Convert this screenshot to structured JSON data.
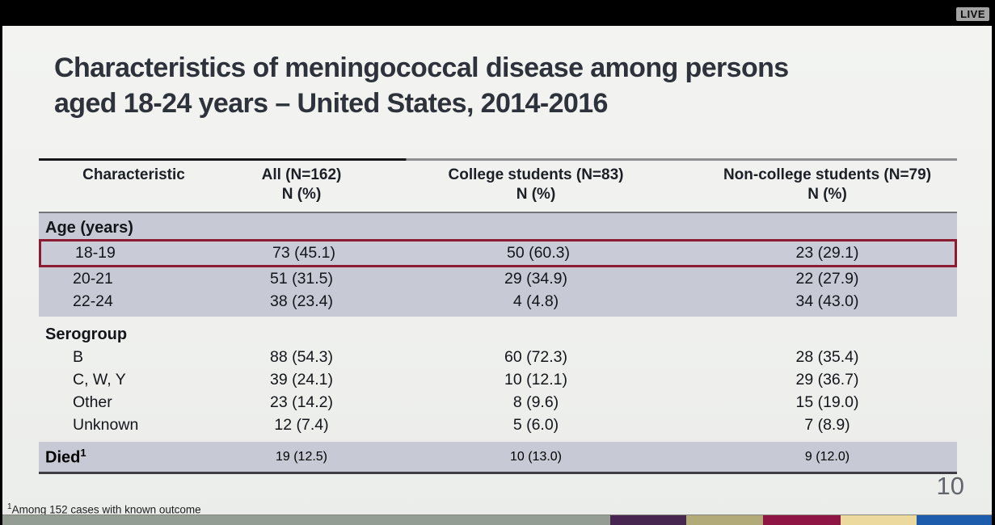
{
  "live": {
    "label": "LIVE"
  },
  "slide": {
    "title": {
      "line1": "Characteristics of meningococcal disease among persons",
      "line2": "aged 18-24 years – United States, 2014-2016"
    },
    "page_number": "10",
    "footnote": {
      "sup": "1",
      "text": "Among 152 cases with known outcome"
    }
  },
  "table": {
    "header": {
      "characteristic": "Characteristic",
      "all": "All (N=162)",
      "college": "College students (N=83)",
      "noncollege": "Non-college students (N=79)",
      "subunit": "N (%)"
    },
    "age": {
      "header": "Age (years)",
      "rows": [
        {
          "label": "18-19",
          "all": "73 (45.1)",
          "college": "50 (60.3)",
          "noncollege": "23 (29.1)",
          "highlighted": true
        },
        {
          "label": "20-21",
          "all": "51 (31.5)",
          "college": "29 (34.9)",
          "noncollege": "22 (27.9)",
          "highlighted": false
        },
        {
          "label": "22-24",
          "all": "38 (23.4)",
          "college": "4 (4.8)",
          "noncollege": "34 (43.0)",
          "highlighted": false
        }
      ]
    },
    "serogroup": {
      "header": "Serogroup",
      "rows": [
        {
          "label": "B",
          "all": "88 (54.3)",
          "college": "60 (72.3)",
          "noncollege": "28 (35.4)"
        },
        {
          "label": "C, W, Y",
          "all": "39 (24.1)",
          "college": "10 (12.1)",
          "noncollege": "29 (36.7)"
        },
        {
          "label": "Other",
          "all": "23 (14.2)",
          "college": "8 (9.6)",
          "noncollege": "15 (19.0)"
        },
        {
          "label": "Unknown",
          "all": "12 (7.4)",
          "college": "5 (6.0)",
          "noncollege": "7 (8.9)"
        }
      ]
    },
    "died": {
      "label": "Died",
      "sup": "1",
      "all": "19 (12.5)",
      "college": "10 (13.0)",
      "noncollege": "9 (12.0)"
    }
  },
  "colors": {
    "highlight_box": "#8c1b2f",
    "shaded_band": "#c7c9d4",
    "slide_background": "#f0f1ef",
    "strip": [
      "#939d93",
      "#472750",
      "#b2aa79",
      "#8e1544",
      "#ecd99d",
      "#1d5cad"
    ]
  }
}
